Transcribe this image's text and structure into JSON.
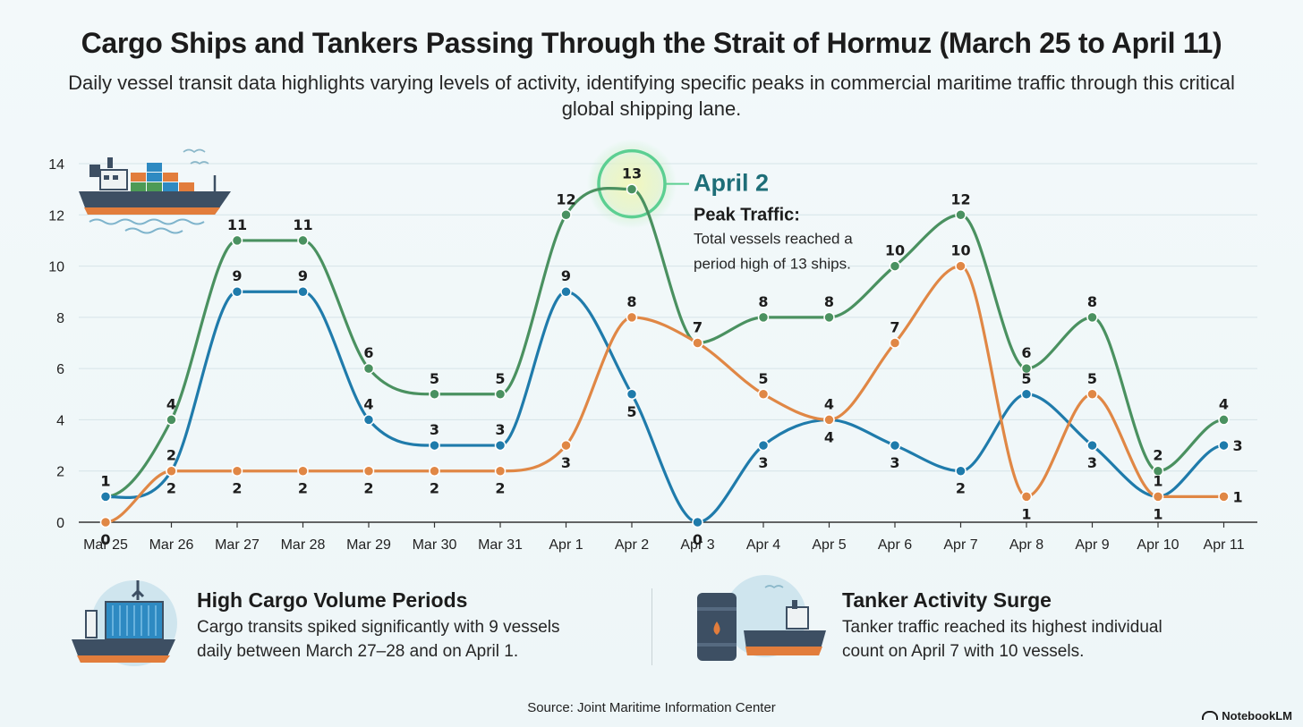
{
  "header": {
    "title": "Cargo Ships and Tankers Passing Through the Strait of Hormuz (March 25 to April 11)",
    "subtitle": "Daily vessel transit data highlights varying levels of activity, identifying specific peaks in commercial maritime traffic through this critical global shipping lane."
  },
  "chart_data": {
    "type": "line",
    "categories": [
      "Mar 25",
      "Mar 26",
      "Mar 27",
      "Mar 28",
      "Mar 29",
      "Mar 30",
      "Mar 31",
      "Apr 1",
      "Apr 2",
      "Apr 3",
      "Apr 4",
      "Apr 5",
      "Apr 6",
      "Apr 7",
      "Apr 8",
      "Apr 9",
      "Apr 10",
      "Apr 11"
    ],
    "ylim": [
      0,
      14
    ],
    "yticks": [
      0,
      2,
      4,
      6,
      8,
      10,
      12,
      14
    ],
    "grid": true,
    "series": [
      {
        "name": "Total",
        "color": "#4a9160",
        "values": [
          1,
          4,
          11,
          11,
          6,
          5,
          5,
          12,
          13,
          7,
          8,
          8,
          10,
          12,
          6,
          8,
          2,
          4
        ]
      },
      {
        "name": "Cargo",
        "color": "#1f7bab",
        "values": [
          1,
          2,
          9,
          9,
          4,
          3,
          3,
          9,
          5,
          0,
          3,
          4,
          3,
          2,
          5,
          3,
          1,
          3
        ]
      },
      {
        "name": "Tanker",
        "color": "#e08745",
        "values": [
          0,
          2,
          2,
          2,
          2,
          2,
          2,
          3,
          8,
          7,
          5,
          4,
          7,
          10,
          1,
          5,
          1,
          1
        ]
      }
    ],
    "annotation": {
      "date": "April 2",
      "heading": "Peak Traffic:",
      "line1": "Total vessels reached a",
      "line2": "period high of 13 ships."
    }
  },
  "panels": {
    "cargo": {
      "title": "High Cargo Volume Periods",
      "line1": "Cargo transits spiked significantly with 9 vessels",
      "line2": "daily between March 27–28 and on April 1."
    },
    "tanker": {
      "title": "Tanker Activity Surge",
      "line1": "Tanker traffic reached its highest individual",
      "line2": "count on April 7 with 10 vessels."
    }
  },
  "footer": {
    "source": "Source: Joint Maritime Information Center",
    "brand": "NotebookLM"
  }
}
